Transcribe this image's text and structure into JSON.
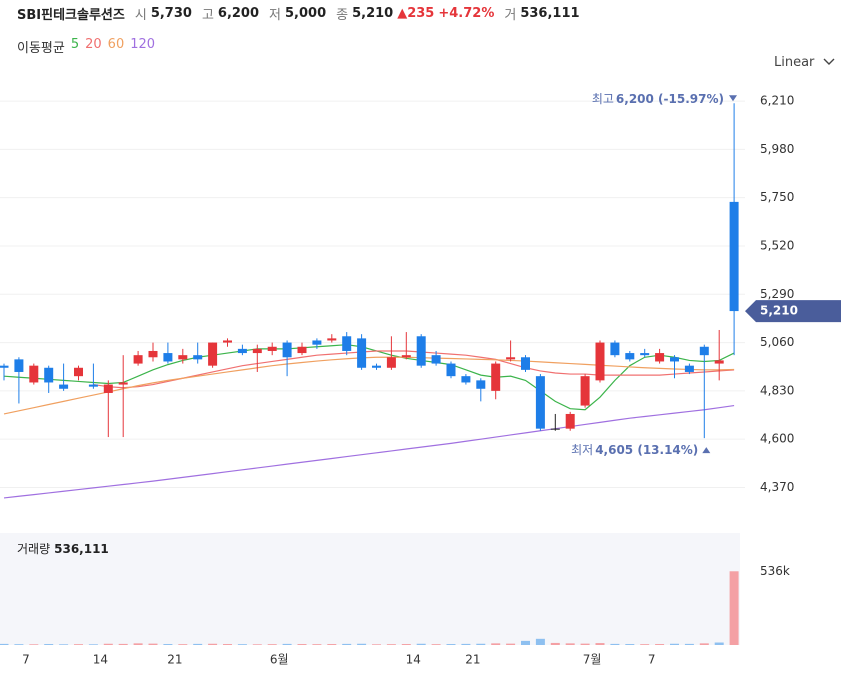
{
  "header": {
    "name": "SBI핀테크솔루션즈",
    "open_label": "시",
    "open": "5,730",
    "high_label": "고",
    "high": "6,200",
    "low_label": "저",
    "low": "5,000",
    "close_label": "종",
    "close": "5,210",
    "change": "▲235",
    "change_pct": "+4.72%",
    "volume_label": "거",
    "volume": "536,111"
  },
  "scale_toggle": "Linear",
  "chart_data": {
    "type": "candlestick",
    "categories": [
      null,
      "7",
      null,
      null,
      null,
      null,
      "14",
      null,
      null,
      null,
      null,
      "21",
      null,
      null,
      null,
      null,
      null,
      null,
      "6월",
      null,
      null,
      null,
      null,
      null,
      null,
      null,
      null,
      "14",
      null,
      null,
      null,
      "21",
      null,
      null,
      null,
      null,
      null,
      null,
      null,
      "7월",
      null,
      null,
      null,
      "7",
      null,
      null,
      null,
      null,
      null,
      null
    ],
    "open": [
      4950,
      4980,
      4870,
      4940,
      4860,
      4900,
      4860,
      4820,
      4860,
      4960,
      4990,
      5010,
      4980,
      5000,
      4950,
      5060,
      5030,
      5010,
      5020,
      5060,
      5010,
      5070,
      5070,
      5090,
      5080,
      4950,
      4940,
      4990,
      5090,
      5000,
      4960,
      4900,
      4880,
      4830,
      4980,
      4990,
      4900,
      4650,
      4650,
      4760,
      4880,
      5060,
      5010,
      5010,
      4970,
      4990,
      4950,
      5040,
      4960,
      5730
    ],
    "high": [
      4960,
      4990,
      4960,
      4950,
      4960,
      4950,
      4960,
      4880,
      5000,
      5020,
      5060,
      5060,
      5030,
      5060,
      5060,
      5080,
      5050,
      5050,
      5060,
      5070,
      5060,
      5080,
      5100,
      5110,
      5100,
      4960,
      5090,
      5110,
      5100,
      5020,
      4970,
      4910,
      4890,
      4970,
      5070,
      5000,
      4910,
      4720,
      4730,
      4910,
      5070,
      5070,
      5020,
      5030,
      5030,
      5000,
      4960,
      5050,
      5120,
      6200
    ],
    "low": [
      4880,
      4770,
      4860,
      4820,
      4830,
      4880,
      4840,
      4610,
      4610,
      4950,
      4970,
      4960,
      4960,
      4960,
      4940,
      5040,
      5000,
      4920,
      5000,
      4900,
      5000,
      5030,
      5060,
      5000,
      4930,
      4930,
      4930,
      4980,
      4940,
      4950,
      4890,
      4860,
      4780,
      4790,
      4970,
      4920,
      4640,
      4640,
      4640,
      4750,
      4870,
      4990,
      4970,
      4990,
      4960,
      4890,
      4910,
      4605,
      4880,
      5000
    ],
    "close": [
      4940,
      4920,
      4950,
      4870,
      4840,
      4940,
      4850,
      4860,
      4870,
      5000,
      5020,
      4970,
      5000,
      4980,
      5060,
      5070,
      5010,
      5030,
      5040,
      4990,
      5040,
      5050,
      5080,
      5020,
      4940,
      4940,
      4990,
      5000,
      4950,
      4960,
      4900,
      4870,
      4840,
      4960,
      4990,
      4930,
      4650,
      4650,
      4720,
      4900,
      5060,
      5000,
      4980,
      5000,
      5010,
      4970,
      4920,
      5000,
      4975,
      5210
    ],
    "up_color": "#e5353a",
    "down_color": "#1e7ee8",
    "flat_color": "#222222",
    "ylim": [
      4215,
      6320
    ],
    "yticks": [
      {
        "value": 4370,
        "label": "4,370"
      },
      {
        "value": 4600,
        "label": "4,600"
      },
      {
        "value": 4830,
        "label": "4,830"
      },
      {
        "value": 5060,
        "label": "5,060"
      },
      {
        "value": 5290,
        "label": "5,290"
      },
      {
        "value": 5520,
        "label": "5,520"
      },
      {
        "value": 5750,
        "label": "5,750"
      },
      {
        "value": 5980,
        "label": "5,980"
      },
      {
        "value": 6210,
        "label": "6,210"
      }
    ],
    "grid": true,
    "legend_title": "이동평균",
    "series": [
      {
        "name": "5",
        "color": "#3cb44b",
        "values": [
          4900,
          4895,
          4890,
          4885,
          4880,
          4875,
          4870,
          4865,
          4870,
          4900,
          4930,
          4955,
          4975,
          4990,
          5000,
          5010,
          5020,
          5030,
          5030,
          5030,
          5035,
          5040,
          5045,
          5050,
          5040,
          5020,
          5000,
          4985,
          4975,
          4965,
          4955,
          4930,
          4905,
          4895,
          4900,
          4880,
          4830,
          4780,
          4745,
          4740,
          4800,
          4880,
          4950,
          4990,
          5000,
          4990,
          4975,
          4970,
          4975,
          5010
        ]
      },
      {
        "name": "20",
        "color": "#f07070",
        "values": [
          null,
          null,
          null,
          null,
          null,
          null,
          4860,
          4850,
          4845,
          4850,
          4860,
          4875,
          4890,
          4905,
          4920,
          4935,
          4950,
          4960,
          4970,
          4980,
          4990,
          5000,
          5005,
          5010,
          5015,
          5020,
          5020,
          5020,
          5015,
          5010,
          5005,
          5000,
          4990,
          4980,
          4960,
          4940,
          4925,
          4915,
          4910,
          4910,
          4905,
          4905,
          4905,
          4905,
          4905,
          4910,
          4915,
          4920,
          4925,
          4930
        ]
      },
      {
        "name": "60",
        "color": "#f0a060",
        "values": [
          4720,
          4735,
          4750,
          4765,
          4780,
          4795,
          4810,
          4825,
          4840,
          4855,
          4868,
          4880,
          4890,
          4900,
          4910,
          4920,
          4930,
          4940,
          4950,
          4958,
          4965,
          4972,
          4978,
          4983,
          4987,
          4990,
          4990,
          4990,
          4988,
          4986,
          4984,
          4982,
          4980,
          4978,
          4975,
          4972,
          4968,
          4964,
          4960,
          4956,
          4952,
          4948,
          4944,
          4940,
          4937,
          4934,
          4932,
          4930,
          4930,
          4932
        ]
      },
      {
        "name": "120",
        "color": "#a070e0",
        "values": [
          4320,
          4328,
          4336,
          4344,
          4352,
          4360,
          4368,
          4376,
          4384,
          4392,
          4400,
          4409,
          4418,
          4427,
          4436,
          4445,
          4454,
          4463,
          4472,
          4481,
          4490,
          4499,
          4508,
          4517,
          4526,
          4535,
          4544,
          4553,
          4562,
          4571,
          4580,
          4590,
          4600,
          4610,
          4620,
          4630,
          4640,
          4650,
          4660,
          4670,
          4680,
          4690,
          4700,
          4708,
          4716,
          4724,
          4732,
          4740,
          4750,
          4760
        ]
      }
    ],
    "volume": [
      8000,
      6000,
      5000,
      7000,
      5000,
      6000,
      5000,
      9000,
      8000,
      12000,
      10000,
      7000,
      6000,
      8000,
      9000,
      7000,
      6000,
      5000,
      6000,
      8000,
      7000,
      6000,
      7000,
      8000,
      9000,
      5000,
      6000,
      7000,
      9000,
      6000,
      7000,
      8000,
      9000,
      12000,
      10000,
      30000,
      45000,
      15000,
      12000,
      10000,
      14000,
      8000,
      7000,
      6000,
      7000,
      9000,
      8000,
      12000,
      18000,
      536111
    ],
    "volume_ylim": [
      0,
      800000
    ],
    "volume_yticks": [
      {
        "value": 536000,
        "label": "536k"
      }
    ],
    "volume_title": "거래량",
    "volume_last": "536,111",
    "max_prefix": "최고",
    "max_label": "6,200 (-15.97%)",
    "min_prefix": "최저",
    "min_label": "4,605 (13.14%)"
  }
}
